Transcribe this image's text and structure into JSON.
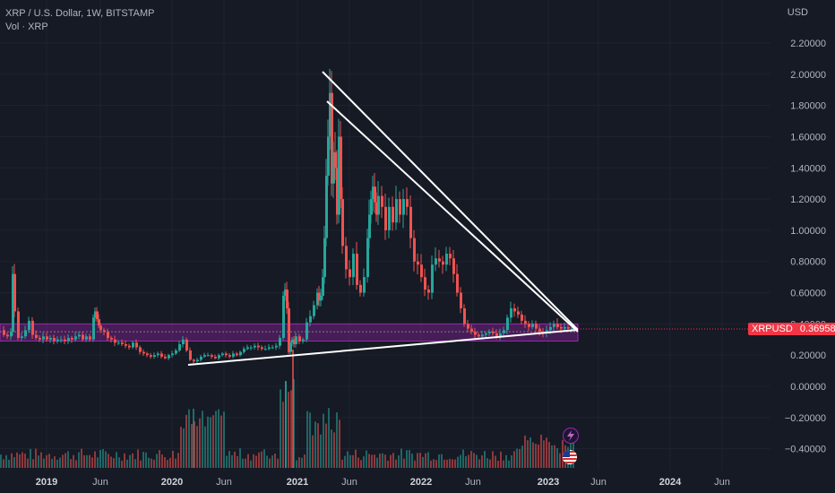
{
  "header": {
    "title": "XRP / U.S. Dollar, 1W, BITSTAMP",
    "volume_label": "Vol · XRP"
  },
  "currency": "USD",
  "price_tag": {
    "symbol": "XRPUSD",
    "value": "0.36958",
    "color": "#f23645"
  },
  "colors": {
    "background": "#161a25",
    "up": "#26a69a",
    "down": "#ef5350",
    "band": "#9c27b0",
    "trendline": "#ffffff"
  },
  "chart_data": {
    "type": "candlestick",
    "title": "XRP / U.S. Dollar, 1W, BITSTAMP",
    "y_axis_ticks": [
      "2.20000",
      "2.00000",
      "1.80000",
      "1.60000",
      "1.40000",
      "1.20000",
      "1.00000",
      "0.80000",
      "0.60000",
      "0.40000",
      "0.20000",
      "0.00000",
      "−0.20000",
      "−0.40000"
    ],
    "y_axis_values": [
      2.2,
      2.0,
      1.8,
      1.6,
      1.4,
      1.2,
      1.0,
      0.8,
      0.6,
      0.4,
      0.2,
      0.0,
      -0.2,
      -0.4
    ],
    "x_axis_ticks": [
      "2019",
      "Jun",
      "2020",
      "Jun",
      "2021",
      "Jun",
      "2022",
      "Jun",
      "2023",
      "Jun",
      "2024",
      "Jun"
    ],
    "x_axis_bold": [
      true,
      false,
      true,
      false,
      true,
      false,
      true,
      false,
      true,
      false,
      true,
      false
    ],
    "ylim": [
      -0.5,
      2.3
    ],
    "price_series": {
      "name": "XRPUSD",
      "points": [
        [
          0,
          0.36
        ],
        [
          4,
          0.33
        ],
        [
          8,
          0.32
        ],
        [
          12,
          0.35
        ],
        [
          14,
          0.72
        ],
        [
          16,
          0.48
        ],
        [
          20,
          0.31
        ],
        [
          24,
          0.32
        ],
        [
          28,
          0.36
        ],
        [
          32,
          0.42
        ],
        [
          36,
          0.33
        ],
        [
          40,
          0.31
        ],
        [
          44,
          0.3
        ],
        [
          48,
          0.32
        ],
        [
          52,
          0.3
        ],
        [
          56,
          0.31
        ],
        [
          60,
          0.29
        ],
        [
          64,
          0.3
        ],
        [
          68,
          0.3
        ],
        [
          72,
          0.29
        ],
        [
          76,
          0.31
        ],
        [
          80,
          0.3
        ],
        [
          84,
          0.32
        ],
        [
          88,
          0.33
        ],
        [
          92,
          0.3
        ],
        [
          96,
          0.32
        ],
        [
          100,
          0.3
        ],
        [
          104,
          0.44
        ],
        [
          106,
          0.48
        ],
        [
          108,
          0.43
        ],
        [
          110,
          0.39
        ],
        [
          112,
          0.36
        ],
        [
          116,
          0.35
        ],
        [
          120,
          0.31
        ],
        [
          124,
          0.3
        ],
        [
          128,
          0.28
        ],
        [
          132,
          0.28
        ],
        [
          136,
          0.27
        ],
        [
          140,
          0.26
        ],
        [
          144,
          0.25
        ],
        [
          148,
          0.28
        ],
        [
          152,
          0.25
        ],
        [
          156,
          0.22
        ],
        [
          160,
          0.21
        ],
        [
          164,
          0.2
        ],
        [
          168,
          0.19
        ],
        [
          172,
          0.2
        ],
        [
          176,
          0.21
        ],
        [
          180,
          0.19
        ],
        [
          184,
          0.18
        ],
        [
          188,
          0.2
        ],
        [
          192,
          0.21
        ],
        [
          196,
          0.23
        ],
        [
          200,
          0.27
        ],
        [
          204,
          0.3
        ],
        [
          208,
          0.23
        ],
        [
          212,
          0.17
        ],
        [
          216,
          0.16
        ],
        [
          220,
          0.17
        ],
        [
          224,
          0.19
        ],
        [
          228,
          0.2
        ],
        [
          232,
          0.2
        ],
        [
          236,
          0.19
        ],
        [
          240,
          0.18
        ],
        [
          244,
          0.2
        ],
        [
          248,
          0.21
        ],
        [
          252,
          0.2
        ],
        [
          256,
          0.19
        ],
        [
          260,
          0.21
        ],
        [
          264,
          0.2
        ],
        [
          268,
          0.22
        ],
        [
          272,
          0.24
        ],
        [
          276,
          0.25
        ],
        [
          280,
          0.25
        ],
        [
          284,
          0.26
        ],
        [
          288,
          0.25
        ],
        [
          292,
          0.24
        ],
        [
          296,
          0.24
        ],
        [
          300,
          0.25
        ],
        [
          304,
          0.25
        ],
        [
          308,
          0.26
        ],
        [
          312,
          0.31
        ],
        [
          316,
          0.58
        ],
        [
          318,
          0.62
        ],
        [
          320,
          0.5
        ],
        [
          322,
          0.22
        ],
        [
          324,
          0.28
        ],
        [
          326,
          0.3
        ],
        [
          328,
          0.27
        ],
        [
          330,
          0.32
        ],
        [
          334,
          0.29
        ],
        [
          338,
          0.3
        ],
        [
          342,
          0.41
        ],
        [
          346,
          0.45
        ],
        [
          350,
          0.52
        ],
        [
          354,
          0.6
        ],
        [
          356,
          0.55
        ],
        [
          358,
          0.58
        ],
        [
          360,
          0.7
        ],
        [
          362,
          0.95
        ],
        [
          364,
          1.35
        ],
        [
          366,
          1.6
        ],
        [
          368,
          1.88
        ],
        [
          370,
          1.3
        ],
        [
          372,
          1.5
        ],
        [
          374,
          1.4
        ],
        [
          376,
          1.1
        ],
        [
          378,
          1.6
        ],
        [
          380,
          1.2
        ],
        [
          382,
          0.9
        ],
        [
          386,
          0.75
        ],
        [
          390,
          0.7
        ],
        [
          394,
          0.85
        ],
        [
          398,
          0.65
        ],
        [
          402,
          0.6
        ],
        [
          406,
          0.7
        ],
        [
          410,
          0.95
        ],
        [
          412,
          1.1
        ],
        [
          414,
          1.2
        ],
        [
          416,
          1.28
        ],
        [
          418,
          1.18
        ],
        [
          420,
          1.1
        ],
        [
          422,
          1.22
        ],
        [
          426,
          1.15
        ],
        [
          430,
          1.0
        ],
        [
          434,
          1.15
        ],
        [
          438,
          1.05
        ],
        [
          442,
          1.2
        ],
        [
          446,
          1.1
        ],
        [
          450,
          1.2
        ],
        [
          454,
          1.15
        ],
        [
          458,
          0.95
        ],
        [
          462,
          0.8
        ],
        [
          466,
          0.78
        ],
        [
          470,
          0.7
        ],
        [
          474,
          0.62
        ],
        [
          478,
          0.6
        ],
        [
          482,
          0.78
        ],
        [
          486,
          0.82
        ],
        [
          490,
          0.8
        ],
        [
          494,
          0.78
        ],
        [
          498,
          0.85
        ],
        [
          502,
          0.82
        ],
        [
          506,
          0.72
        ],
        [
          510,
          0.6
        ],
        [
          514,
          0.5
        ],
        [
          518,
          0.4
        ],
        [
          522,
          0.37
        ],
        [
          526,
          0.35
        ],
        [
          530,
          0.33
        ],
        [
          534,
          0.32
        ],
        [
          538,
          0.33
        ],
        [
          542,
          0.34
        ],
        [
          546,
          0.35
        ],
        [
          550,
          0.34
        ],
        [
          554,
          0.32
        ],
        [
          558,
          0.34
        ],
        [
          562,
          0.36
        ],
        [
          566,
          0.44
        ],
        [
          570,
          0.5
        ],
        [
          574,
          0.48
        ],
        [
          578,
          0.46
        ],
        [
          582,
          0.42
        ],
        [
          586,
          0.4
        ],
        [
          590,
          0.38
        ],
        [
          594,
          0.4
        ],
        [
          598,
          0.37
        ],
        [
          602,
          0.35
        ],
        [
          606,
          0.34
        ],
        [
          610,
          0.36
        ],
        [
          614,
          0.38
        ],
        [
          618,
          0.4
        ],
        [
          622,
          0.38
        ],
        [
          626,
          0.37
        ],
        [
          630,
          0.38
        ],
        [
          634,
          0.37
        ],
        [
          638,
          0.37
        ]
      ]
    },
    "volume_series": {
      "name": "Vol · XRP"
    }
  }
}
